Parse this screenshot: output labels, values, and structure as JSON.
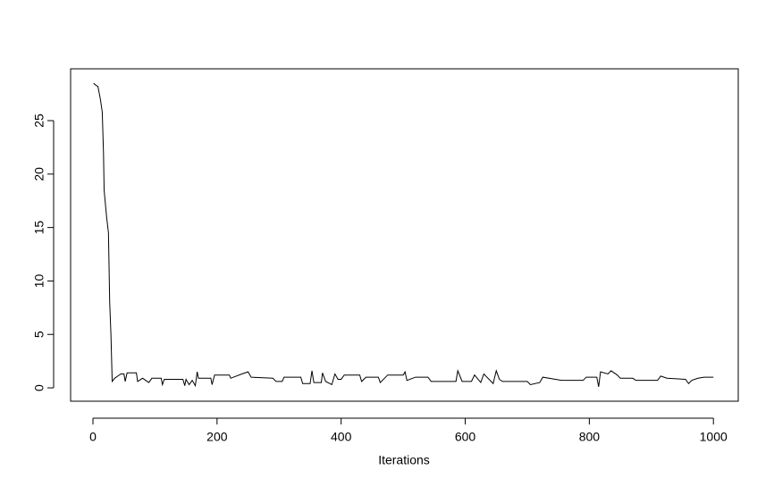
{
  "chart_data": {
    "type": "line",
    "x_label": "Iterations",
    "color": "#000000",
    "x": [
      1,
      5,
      8,
      12,
      15,
      17,
      18,
      22,
      25,
      27,
      29,
      31,
      35,
      40,
      45,
      50,
      52,
      55,
      70,
      72,
      80,
      90,
      95,
      110,
      112,
      115,
      145,
      148,
      150,
      155,
      160,
      165,
      168,
      170,
      190,
      192,
      196,
      220,
      222,
      240,
      250,
      255,
      290,
      295,
      305,
      308,
      335,
      338,
      350,
      353,
      356,
      368,
      370,
      375,
      385,
      390,
      395,
      400,
      405,
      430,
      433,
      440,
      460,
      463,
      475,
      500,
      503,
      506,
      520,
      540,
      545,
      585,
      588,
      595,
      610,
      615,
      625,
      630,
      645,
      650,
      655,
      660,
      700,
      705,
      720,
      725,
      755,
      790,
      795,
      812,
      815,
      818,
      830,
      835,
      845,
      850,
      870,
      875,
      910,
      915,
      925,
      955,
      960,
      965,
      975,
      985,
      1000
    ],
    "values": [
      28.5,
      28.3,
      28.2,
      27,
      25.8,
      22,
      18.5,
      16,
      14.5,
      8,
      5,
      0.6,
      0.9,
      1.1,
      1.3,
      1.3,
      0.6,
      1.4,
      1.4,
      0.6,
      0.9,
      0.5,
      0.9,
      0.9,
      0.3,
      0.8,
      0.8,
      0.2,
      0.8,
      0.3,
      0.7,
      0.2,
      1.5,
      0.9,
      0.9,
      0.3,
      1.2,
      1.2,
      0.9,
      1.3,
      1.5,
      1.0,
      0.9,
      0.6,
      0.6,
      1.0,
      1.0,
      0.4,
      0.4,
      1.6,
      0.5,
      0.5,
      1.4,
      0.6,
      0.3,
      1.3,
      0.8,
      0.8,
      1.2,
      1.2,
      0.6,
      1.0,
      1.0,
      0.5,
      1.2,
      1.2,
      1.5,
      0.7,
      1.0,
      1.0,
      0.6,
      0.6,
      1.6,
      0.6,
      0.6,
      1.2,
      0.5,
      1.3,
      0.4,
      1.6,
      0.8,
      0.6,
      0.6,
      0.3,
      0.5,
      1.0,
      0.7,
      0.7,
      1.0,
      1.0,
      0.1,
      1.5,
      1.3,
      1.6,
      1.2,
      0.9,
      0.9,
      0.7,
      0.7,
      1.1,
      0.9,
      0.8,
      0.4,
      0.7,
      0.9,
      1.0,
      1.0
    ],
    "xlim": [
      -36,
      1040
    ],
    "ylim": [
      -1.25,
      29.85
    ],
    "xticks": [
      0,
      200,
      400,
      600,
      800,
      1000
    ],
    "yticks": [
      0,
      5,
      10,
      15,
      20,
      25
    ]
  }
}
